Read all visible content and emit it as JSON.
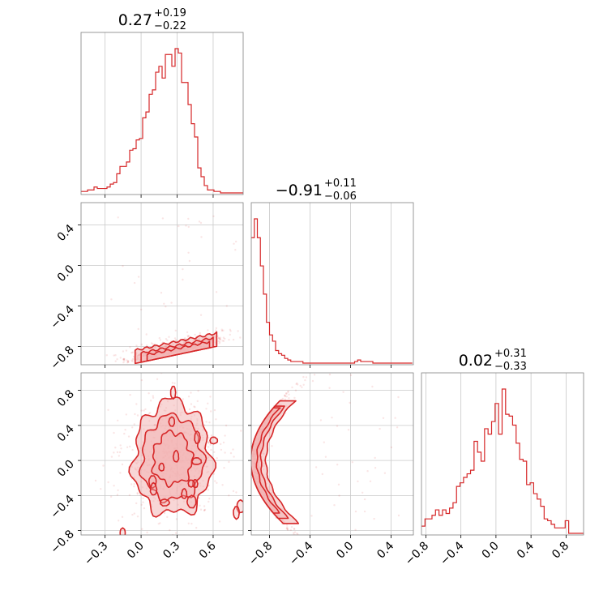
{
  "chart_data": {
    "type": "corner",
    "color": "#d62728",
    "fill_color": "#f2b4b5",
    "grid": true,
    "parameters": [
      {
        "title_value": "0.27",
        "title_plus": "+0.19",
        "title_minus": "−0.22",
        "range": [
          -0.5,
          0.85
        ],
        "ticks": [
          {
            "v": -0.3,
            "label": "−0.3"
          },
          {
            "v": 0.0,
            "label": "0.0"
          },
          {
            "v": 0.3,
            "label": "0.3"
          },
          {
            "v": 0.6,
            "label": "0.6"
          }
        ]
      },
      {
        "title_value": "−0.91",
        "title_plus": "+0.11",
        "title_minus": "−0.06",
        "range": [
          -0.98,
          0.62
        ],
        "ticks": [
          {
            "v": -0.8,
            "label": "−0.8"
          },
          {
            "v": -0.4,
            "label": "−0.4"
          },
          {
            "v": 0.0,
            "label": "0.0"
          },
          {
            "v": 0.4,
            "label": "0.4"
          }
        ]
      },
      {
        "title_value": "0.02",
        "title_plus": "+0.31",
        "title_minus": "−0.33",
        "range": [
          -0.85,
          1.0
        ],
        "ticks": [
          {
            "v": -0.8,
            "label": "−0.8"
          },
          {
            "v": -0.4,
            "label": "−0.4"
          },
          {
            "v": 0.0,
            "label": "0.0"
          },
          {
            "v": 0.4,
            "label": "0.4"
          },
          {
            "v": 0.8,
            "label": "0.8"
          }
        ]
      }
    ],
    "histograms": [
      {
        "param": 0,
        "bin_start": -0.5,
        "bin_width": 0.027,
        "counts": [
          1,
          1,
          2,
          2,
          4,
          3,
          3,
          3,
          4,
          6,
          7,
          13,
          18,
          18,
          21,
          29,
          30,
          36,
          37,
          51,
          55,
          67,
          70,
          82,
          86,
          78,
          94,
          94,
          86,
          98,
          95,
          75,
          75,
          60,
          47,
          38,
          17,
          11,
          5,
          2,
          2,
          1,
          1,
          0,
          0,
          0,
          0,
          0,
          0,
          0
        ]
      },
      {
        "param": 1,
        "bin_start": -0.98,
        "bin_width": 0.03,
        "counts": [
          80,
          92,
          80,
          62,
          44,
          26,
          18,
          14,
          8,
          6,
          5,
          3,
          2,
          1,
          1,
          1,
          1,
          0,
          0,
          0,
          0,
          0,
          0,
          0,
          0,
          0,
          0,
          0,
          0,
          0,
          0,
          0,
          0,
          0,
          1,
          2,
          1,
          1,
          1,
          1,
          0,
          0,
          0,
          0,
          0,
          0,
          0,
          0,
          0,
          0,
          0,
          0,
          0
        ]
      },
      {
        "param": 2,
        "bin_start": -0.85,
        "bin_width": 0.04,
        "counts": [
          4,
          8,
          8,
          10,
          13,
          10,
          13,
          11,
          14,
          17,
          26,
          28,
          31,
          33,
          35,
          51,
          45,
          40,
          58,
          55,
          62,
          72,
          55,
          80,
          66,
          65,
          60,
          50,
          41,
          40,
          27,
          28,
          22,
          19,
          15,
          8,
          7,
          5,
          3,
          3,
          3,
          7,
          0,
          0,
          0,
          0,
          0
        ]
      }
    ],
    "scatter_panels": [
      {
        "x_param": 0,
        "y_param": 1,
        "shape": "right-rising-band",
        "contour_levels": [
          "outer",
          "middle",
          "inner"
        ]
      },
      {
        "x_param": 0,
        "y_param": 2,
        "shape": "blob",
        "contour_levels": [
          "outer",
          "middle",
          "inner"
        ]
      },
      {
        "x_param": 1,
        "y_param": 2,
        "shape": "crescent",
        "contour_levels": [
          "outer",
          "middle",
          "inner"
        ]
      }
    ]
  }
}
